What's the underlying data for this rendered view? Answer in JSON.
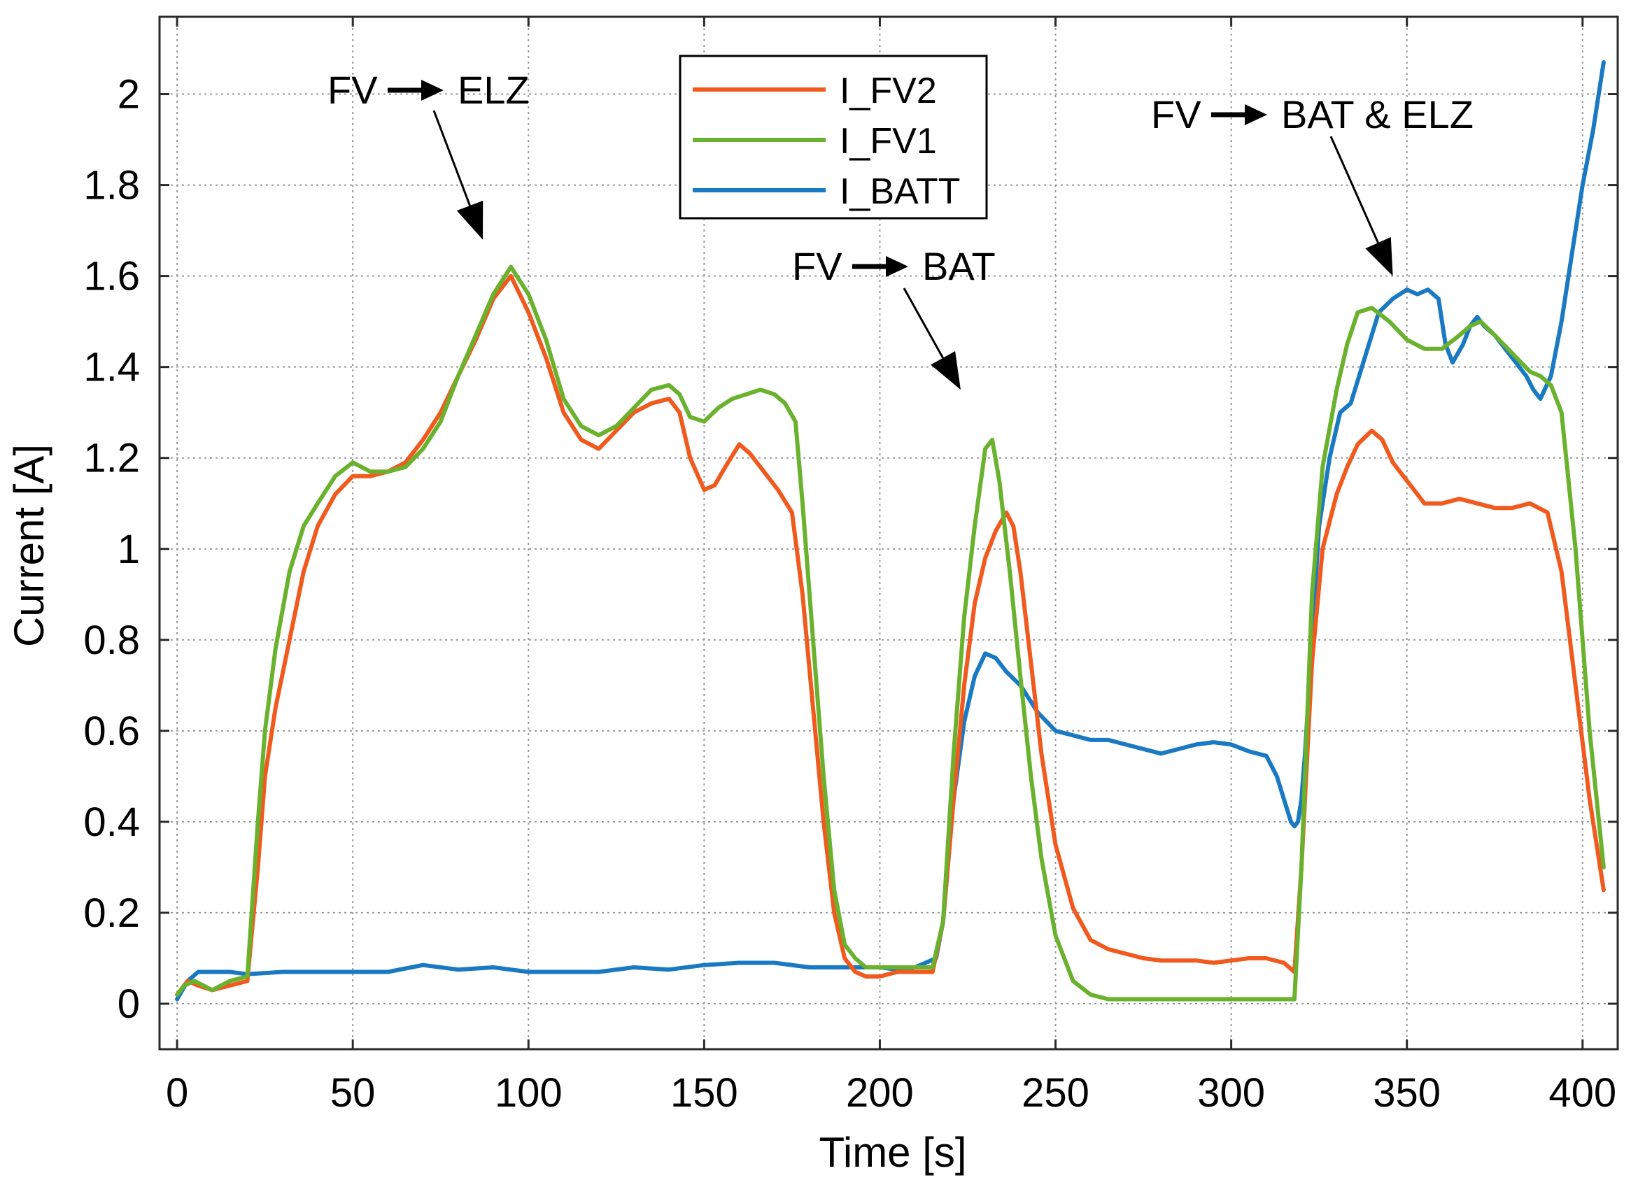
{
  "chart_data": {
    "type": "line",
    "title": "",
    "xlabel": "Time [s]",
    "ylabel": "Current [A]",
    "xlim": [
      -5,
      410
    ],
    "ylim": [
      -0.1,
      2.17
    ],
    "xticks": [
      0,
      50,
      100,
      150,
      200,
      250,
      300,
      350,
      400
    ],
    "yticks": [
      0,
      0.2,
      0.4,
      0.6,
      0.8,
      1,
      1.2,
      1.4,
      1.6,
      1.8,
      2
    ],
    "grid": true,
    "legend": {
      "position": "top-center"
    },
    "annotations": [
      {
        "from": "FV",
        "to": "ELZ",
        "arrow_tip": [
          87,
          1.68
        ]
      },
      {
        "from": "FV",
        "to": "BAT",
        "arrow_tip": [
          223,
          1.35
        ]
      },
      {
        "from": "FV",
        "to": "BAT & ELZ",
        "arrow_tip": [
          346,
          1.6
        ]
      }
    ],
    "series": [
      {
        "name": "I_FV2",
        "color": "#f05a1e",
        "x": [
          0,
          3,
          6,
          10,
          15,
          20,
          23,
          25,
          28,
          32,
          36,
          40,
          45,
          50,
          55,
          60,
          65,
          70,
          75,
          80,
          85,
          90,
          95,
          100,
          105,
          110,
          115,
          120,
          125,
          130,
          135,
          140,
          143,
          146,
          150,
          153,
          156,
          160,
          163,
          167,
          171,
          175,
          178,
          181,
          184,
          187,
          190,
          193,
          196,
          200,
          205,
          210,
          215,
          218,
          221,
          224,
          227,
          230,
          233,
          236,
          238,
          240,
          243,
          246,
          250,
          255,
          260,
          265,
          270,
          275,
          280,
          285,
          290,
          295,
          300,
          305,
          310,
          315,
          318,
          320,
          323,
          326,
          330,
          333,
          336,
          340,
          343,
          346,
          350,
          355,
          360,
          365,
          370,
          375,
          380,
          385,
          390,
          394,
          398,
          402,
          406
        ],
        "values": [
          0.02,
          0.05,
          0.04,
          0.03,
          0.04,
          0.05,
          0.3,
          0.5,
          0.65,
          0.8,
          0.95,
          1.05,
          1.12,
          1.16,
          1.16,
          1.17,
          1.19,
          1.24,
          1.3,
          1.38,
          1.46,
          1.55,
          1.6,
          1.52,
          1.42,
          1.3,
          1.24,
          1.22,
          1.26,
          1.3,
          1.32,
          1.33,
          1.3,
          1.2,
          1.13,
          1.14,
          1.18,
          1.23,
          1.21,
          1.17,
          1.13,
          1.08,
          0.9,
          0.65,
          0.4,
          0.2,
          0.1,
          0.07,
          0.06,
          0.06,
          0.07,
          0.07,
          0.07,
          0.18,
          0.45,
          0.7,
          0.88,
          0.98,
          1.04,
          1.08,
          1.05,
          0.95,
          0.75,
          0.55,
          0.35,
          0.21,
          0.14,
          0.12,
          0.11,
          0.1,
          0.095,
          0.095,
          0.095,
          0.09,
          0.095,
          0.1,
          0.1,
          0.09,
          0.07,
          0.3,
          0.75,
          1.0,
          1.12,
          1.18,
          1.23,
          1.26,
          1.24,
          1.19,
          1.15,
          1.1,
          1.1,
          1.11,
          1.1,
          1.09,
          1.09,
          1.1,
          1.08,
          0.95,
          0.7,
          0.45,
          0.25
        ]
      },
      {
        "name": "I_FV1",
        "color": "#6ab22e",
        "x": [
          0,
          2,
          5,
          10,
          15,
          20,
          23,
          25,
          28,
          32,
          36,
          40,
          45,
          50,
          55,
          60,
          65,
          70,
          75,
          80,
          85,
          90,
          95,
          100,
          105,
          110,
          115,
          120,
          125,
          130,
          135,
          140,
          143,
          146,
          150,
          154,
          158,
          162,
          166,
          170,
          173,
          176,
          178,
          181,
          184,
          187,
          190,
          193,
          196,
          200,
          205,
          210,
          215,
          218,
          221,
          224,
          227,
          230,
          232,
          234,
          237,
          240,
          243,
          246,
          250,
          255,
          260,
          265,
          270,
          275,
          280,
          285,
          290,
          295,
          300,
          305,
          310,
          315,
          318,
          320,
          323,
          326,
          330,
          333,
          336,
          340,
          345,
          350,
          355,
          360,
          365,
          368,
          371,
          375,
          380,
          385,
          388,
          391,
          394,
          398,
          402,
          406
        ],
        "values": [
          0.02,
          0.04,
          0.05,
          0.03,
          0.05,
          0.06,
          0.4,
          0.6,
          0.78,
          0.95,
          1.05,
          1.1,
          1.16,
          1.19,
          1.17,
          1.17,
          1.18,
          1.22,
          1.28,
          1.38,
          1.47,
          1.56,
          1.62,
          1.56,
          1.46,
          1.33,
          1.27,
          1.25,
          1.27,
          1.31,
          1.35,
          1.36,
          1.34,
          1.29,
          1.28,
          1.31,
          1.33,
          1.34,
          1.35,
          1.34,
          1.32,
          1.28,
          1.1,
          0.8,
          0.5,
          0.25,
          0.13,
          0.1,
          0.08,
          0.08,
          0.08,
          0.08,
          0.08,
          0.18,
          0.55,
          0.85,
          1.05,
          1.22,
          1.24,
          1.15,
          0.95,
          0.72,
          0.5,
          0.32,
          0.15,
          0.05,
          0.02,
          0.01,
          0.01,
          0.01,
          0.01,
          0.01,
          0.01,
          0.01,
          0.01,
          0.01,
          0.01,
          0.01,
          0.01,
          0.3,
          0.9,
          1.18,
          1.35,
          1.45,
          1.52,
          1.53,
          1.5,
          1.46,
          1.44,
          1.44,
          1.47,
          1.49,
          1.5,
          1.47,
          1.43,
          1.39,
          1.38,
          1.36,
          1.3,
          1.0,
          0.6,
          0.3
        ]
      },
      {
        "name": "I_BATT",
        "color": "#1979c2",
        "x": [
          0,
          3,
          6,
          10,
          15,
          20,
          30,
          40,
          50,
          60,
          70,
          80,
          90,
          100,
          110,
          120,
          130,
          140,
          150,
          160,
          170,
          180,
          190,
          200,
          205,
          210,
          213,
          216,
          218,
          221,
          224,
          227,
          230,
          233,
          236,
          240,
          245,
          250,
          255,
          260,
          265,
          270,
          275,
          280,
          285,
          290,
          295,
          300,
          305,
          310,
          313,
          315,
          317,
          318,
          319,
          320,
          321,
          323,
          325,
          328,
          331,
          334,
          338,
          342,
          346,
          350,
          353,
          356,
          359,
          361,
          363,
          366,
          368,
          370,
          372,
          375,
          378,
          381,
          384,
          386,
          388,
          391,
          394,
          397,
          400,
          403,
          406
        ],
        "values": [
          0.01,
          0.05,
          0.07,
          0.07,
          0.07,
          0.065,
          0.07,
          0.07,
          0.07,
          0.07,
          0.085,
          0.075,
          0.08,
          0.07,
          0.07,
          0.07,
          0.08,
          0.075,
          0.085,
          0.09,
          0.09,
          0.08,
          0.08,
          0.08,
          0.075,
          0.08,
          0.09,
          0.1,
          0.18,
          0.45,
          0.62,
          0.72,
          0.77,
          0.76,
          0.73,
          0.7,
          0.64,
          0.6,
          0.59,
          0.58,
          0.58,
          0.57,
          0.56,
          0.55,
          0.56,
          0.57,
          0.575,
          0.57,
          0.555,
          0.545,
          0.5,
          0.45,
          0.4,
          0.39,
          0.4,
          0.45,
          0.55,
          0.8,
          1.05,
          1.2,
          1.3,
          1.32,
          1.42,
          1.52,
          1.55,
          1.57,
          1.56,
          1.57,
          1.55,
          1.45,
          1.41,
          1.45,
          1.49,
          1.51,
          1.49,
          1.47,
          1.44,
          1.41,
          1.38,
          1.35,
          1.33,
          1.38,
          1.5,
          1.65,
          1.8,
          1.92,
          2.07
        ]
      }
    ]
  }
}
